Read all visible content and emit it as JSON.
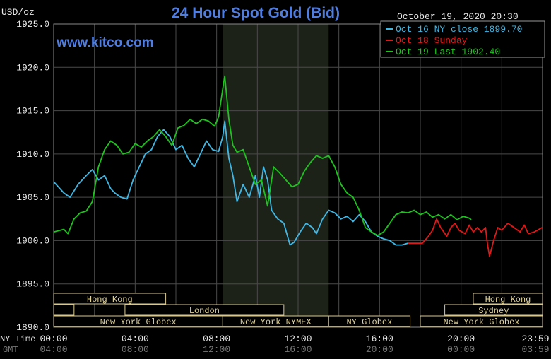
{
  "chart_data": {
    "type": "line",
    "title": "24 Hour Spot Gold (Bid)",
    "watermark": "www.kitco.com",
    "ylabel": "USD/oz",
    "timestamp": "October 19, 2020 20:30",
    "ylim": [
      1890,
      1925
    ],
    "y_ticks": [
      "1925.0",
      "1920.0",
      "1915.0",
      "1910.0",
      "1905.0",
      "1900.0",
      "1895.0",
      "1890.0"
    ],
    "x_axis_label_ny": "NY Time",
    "x_axis_label_gmt": "GMT",
    "x_ticks_ny": [
      "00:00",
      "04:00",
      "08:00",
      "12:00",
      "16:00",
      "20:00",
      "23:59"
    ],
    "x_ticks_gmt": [
      "04:00",
      "08:00",
      "12:00",
      "16:00",
      "20:00",
      "00:00",
      "03:59"
    ],
    "x_tick_hours": [
      0,
      4,
      8,
      12,
      16,
      20,
      23.98
    ],
    "shaded_session_hours": [
      8.3,
      13.5
    ],
    "colors": {
      "background": "#000000",
      "grid": "#4a4a4a",
      "axis_text": "#e8e8e8",
      "title": "#4f7de0",
      "watermark": "#4f7de0",
      "shade": "#1d2219",
      "session_bar": "#d8c890",
      "session_text": "#e2d49a"
    },
    "legend": {
      "position": "top-right",
      "entries": [
        {
          "label": "Oct 16 NY close 1899.70",
          "color": "#3fb8e6"
        },
        {
          "label": "Oct 18 Sunday",
          "color": "#e01818"
        },
        {
          "label": "Oct 19 Last 1902.40",
          "color": "#1ec41e"
        }
      ]
    },
    "sessions": {
      "top_row": [
        {
          "label": "Hong Kong",
          "start": 0,
          "end": 5.5
        },
        {
          "label": "Hong Kong",
          "start": 20.6,
          "end": 24
        }
      ],
      "middle_row": [
        {
          "label": "",
          "start": 0,
          "end": 1
        },
        {
          "label": "London",
          "start": 3.5,
          "end": 11.3
        },
        {
          "label": "Sydney",
          "start": 19.2,
          "end": 24
        }
      ],
      "bottom_row": [
        {
          "label": "New York Globex",
          "start": 0,
          "end": 8.3
        },
        {
          "label": "New York NYMEX",
          "start": 8.3,
          "end": 13.5
        },
        {
          "label": "NY Globex",
          "start": 13.5,
          "end": 17.5
        },
        {
          "label": "New York Globex",
          "start": 18,
          "end": 24
        }
      ]
    },
    "series": [
      {
        "name": "Oct 16 NY close 1899.70",
        "color": "#3fb8e6",
        "points": [
          [
            0,
            1906.8
          ],
          [
            0.5,
            1905.5
          ],
          [
            0.8,
            1905.0
          ],
          [
            1.2,
            1906.5
          ],
          [
            1.6,
            1907.5
          ],
          [
            1.9,
            1908.2
          ],
          [
            2.2,
            1907.0
          ],
          [
            2.5,
            1907.5
          ],
          [
            2.8,
            1906.0
          ],
          [
            3.0,
            1905.5
          ],
          [
            3.3,
            1905.0
          ],
          [
            3.6,
            1904.8
          ],
          [
            3.9,
            1907.0
          ],
          [
            4.2,
            1908.5
          ],
          [
            4.5,
            1910.0
          ],
          [
            4.8,
            1910.5
          ],
          [
            5.1,
            1912.0
          ],
          [
            5.4,
            1912.8
          ],
          [
            5.7,
            1912.0
          ],
          [
            6.0,
            1910.5
          ],
          [
            6.3,
            1911.0
          ],
          [
            6.6,
            1909.5
          ],
          [
            6.9,
            1908.5
          ],
          [
            7.2,
            1910.0
          ],
          [
            7.5,
            1911.5
          ],
          [
            7.8,
            1910.5
          ],
          [
            8.1,
            1910.3
          ],
          [
            8.3,
            1912.0
          ],
          [
            8.4,
            1913.8
          ],
          [
            8.6,
            1909.5
          ],
          [
            8.8,
            1907.5
          ],
          [
            9.0,
            1904.5
          ],
          [
            9.3,
            1906.5
          ],
          [
            9.6,
            1905.0
          ],
          [
            9.9,
            1907.5
          ],
          [
            10.1,
            1905.0
          ],
          [
            10.3,
            1908.5
          ],
          [
            10.5,
            1907.0
          ],
          [
            10.7,
            1903.5
          ],
          [
            11.0,
            1902.5
          ],
          [
            11.3,
            1902.0
          ],
          [
            11.6,
            1899.5
          ],
          [
            11.8,
            1899.8
          ],
          [
            12.1,
            1901.0
          ],
          [
            12.4,
            1902.0
          ],
          [
            12.7,
            1901.5
          ],
          [
            12.9,
            1900.8
          ],
          [
            13.2,
            1902.5
          ],
          [
            13.5,
            1903.5
          ],
          [
            13.8,
            1903.2
          ],
          [
            14.1,
            1902.5
          ],
          [
            14.4,
            1902.8
          ],
          [
            14.7,
            1902.2
          ],
          [
            15.0,
            1903.0
          ],
          [
            15.3,
            1902.2
          ],
          [
            15.6,
            1901.0
          ],
          [
            15.9,
            1900.5
          ],
          [
            16.2,
            1900.2
          ],
          [
            16.5,
            1900.0
          ],
          [
            16.8,
            1899.5
          ],
          [
            17.1,
            1899.5
          ],
          [
            17.4,
            1899.7
          ]
        ]
      },
      {
        "name": "Oct 18 Sunday",
        "color": "#e01818",
        "points": [
          [
            17.4,
            1899.7
          ],
          [
            18.1,
            1899.7
          ],
          [
            18.4,
            1900.5
          ],
          [
            18.6,
            1901.2
          ],
          [
            18.8,
            1902.5
          ],
          [
            19.0,
            1901.5
          ],
          [
            19.3,
            1900.5
          ],
          [
            19.5,
            1901.5
          ],
          [
            19.7,
            1902.0
          ],
          [
            19.9,
            1901.2
          ],
          [
            20.2,
            1900.8
          ],
          [
            20.4,
            1901.8
          ],
          [
            20.6,
            1901.0
          ],
          [
            20.8,
            1901.5
          ],
          [
            21.0,
            1901.0
          ],
          [
            21.2,
            1901.5
          ],
          [
            21.3,
            1899.5
          ],
          [
            21.4,
            1898.2
          ],
          [
            21.6,
            1900.0
          ],
          [
            21.8,
            1901.5
          ],
          [
            22.0,
            1901.2
          ],
          [
            22.3,
            1902.0
          ],
          [
            22.6,
            1901.5
          ],
          [
            22.9,
            1901.0
          ],
          [
            23.1,
            1901.8
          ],
          [
            23.3,
            1900.8
          ],
          [
            23.6,
            1901.0
          ],
          [
            23.98,
            1901.5
          ]
        ]
      },
      {
        "name": "Oct 19 Last 1902.40",
        "color": "#1ec41e",
        "points": [
          [
            0,
            1901.0
          ],
          [
            0.5,
            1901.3
          ],
          [
            0.7,
            1900.8
          ],
          [
            1.0,
            1902.5
          ],
          [
            1.3,
            1903.2
          ],
          [
            1.6,
            1903.4
          ],
          [
            1.9,
            1904.5
          ],
          [
            2.2,
            1908.5
          ],
          [
            2.5,
            1910.5
          ],
          [
            2.8,
            1911.5
          ],
          [
            3.1,
            1911.0
          ],
          [
            3.4,
            1910.0
          ],
          [
            3.7,
            1910.2
          ],
          [
            4.0,
            1911.2
          ],
          [
            4.3,
            1910.8
          ],
          [
            4.6,
            1911.5
          ],
          [
            4.9,
            1912.0
          ],
          [
            5.2,
            1912.8
          ],
          [
            5.5,
            1912.0
          ],
          [
            5.8,
            1911.0
          ],
          [
            6.1,
            1913.0
          ],
          [
            6.4,
            1913.3
          ],
          [
            6.7,
            1914.0
          ],
          [
            7.0,
            1913.5
          ],
          [
            7.3,
            1914.0
          ],
          [
            7.6,
            1913.8
          ],
          [
            7.9,
            1913.2
          ],
          [
            8.1,
            1914.3
          ],
          [
            8.3,
            1917.5
          ],
          [
            8.4,
            1919.0
          ],
          [
            8.6,
            1914.0
          ],
          [
            8.8,
            1911.0
          ],
          [
            9.0,
            1910.2
          ],
          [
            9.3,
            1910.5
          ],
          [
            9.6,
            1908.5
          ],
          [
            9.9,
            1906.5
          ],
          [
            10.2,
            1907.0
          ],
          [
            10.5,
            1904.0
          ],
          [
            10.8,
            1908.5
          ],
          [
            11.1,
            1907.8
          ],
          [
            11.4,
            1907.0
          ],
          [
            11.7,
            1906.2
          ],
          [
            12.0,
            1906.5
          ],
          [
            12.3,
            1908.0
          ],
          [
            12.6,
            1909.0
          ],
          [
            12.9,
            1909.8
          ],
          [
            13.2,
            1909.5
          ],
          [
            13.5,
            1909.8
          ],
          [
            13.8,
            1908.5
          ],
          [
            14.1,
            1906.5
          ],
          [
            14.4,
            1905.5
          ],
          [
            14.7,
            1905.0
          ],
          [
            15.0,
            1903.5
          ],
          [
            15.3,
            1901.5
          ],
          [
            15.6,
            1901.0
          ],
          [
            15.9,
            1900.6
          ],
          [
            16.2,
            1901.0
          ],
          [
            16.5,
            1902.0
          ],
          [
            16.8,
            1903.0
          ],
          [
            17.1,
            1903.3
          ],
          [
            17.4,
            1903.2
          ],
          [
            17.7,
            1903.5
          ],
          [
            18.0,
            1903.0
          ],
          [
            18.3,
            1903.3
          ],
          [
            18.6,
            1902.7
          ],
          [
            18.9,
            1903.0
          ],
          [
            19.2,
            1902.5
          ],
          [
            19.5,
            1903.0
          ],
          [
            19.8,
            1902.4
          ],
          [
            20.1,
            1902.8
          ],
          [
            20.4,
            1902.6
          ],
          [
            20.5,
            1902.4
          ]
        ]
      }
    ]
  }
}
